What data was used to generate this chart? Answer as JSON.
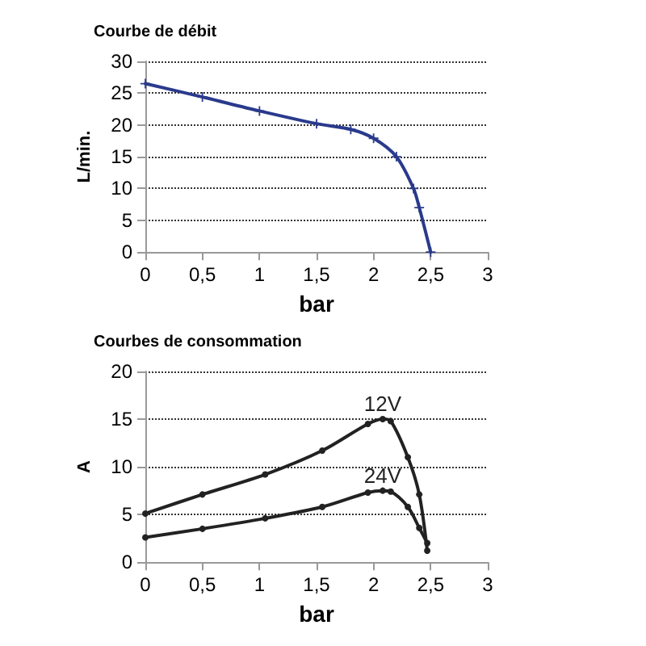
{
  "chart_data": [
    {
      "type": "line",
      "title": "Courbe de débit",
      "xlabel": "bar",
      "ylabel": "L/min.",
      "xlim": [
        0,
        3
      ],
      "xticks": [
        0,
        {
          "value": 0.5,
          "label": "0,5"
        },
        1,
        {
          "value": 1.5,
          "label": "1,5"
        },
        2,
        {
          "value": 2.5,
          "label": "2,5"
        },
        3
      ],
      "ylim": [
        0,
        30
      ],
      "yticks": [
        0,
        5,
        10,
        15,
        20,
        25,
        30
      ],
      "grid": "y",
      "marker": "cross",
      "line_style": "solid",
      "series": [
        {
          "color": "#2a3a8c",
          "x": [
            0,
            0.5,
            1,
            1.5,
            1.8,
            2,
            2.2,
            2.35,
            2.4,
            2.5
          ],
          "values": [
            26.5,
            24.4,
            22.2,
            20.2,
            19.3,
            17.9,
            15,
            10,
            7,
            0
          ]
        }
      ]
    },
    {
      "type": "line",
      "title": "Courbes de consommation",
      "xlabel": "bar",
      "ylabel": "A",
      "xlim": [
        0,
        3
      ],
      "xticks": [
        0,
        {
          "value": 0.5,
          "label": "0,5"
        },
        1,
        {
          "value": 1.5,
          "label": "1,5"
        },
        2,
        {
          "value": 2.5,
          "label": "2,5"
        },
        3
      ],
      "ylim": [
        0,
        20
      ],
      "yticks": [
        0,
        5,
        10,
        15,
        20
      ],
      "grid": "y",
      "marker": "circle",
      "line_style": "solid",
      "series": [
        {
          "name": "12V",
          "color": "#222222",
          "x": [
            0,
            0.5,
            1.05,
            1.55,
            1.95,
            2.08,
            2.15,
            2.3,
            2.4,
            2.47
          ],
          "values": [
            5.1,
            7.1,
            9.2,
            11.7,
            14.5,
            15,
            14.8,
            11,
            7.1,
            1.2
          ]
        },
        {
          "name": "24V",
          "color": "#222222",
          "x": [
            0,
            0.5,
            1.05,
            1.55,
            1.95,
            2.08,
            2.15,
            2.3,
            2.4,
            2.47
          ],
          "values": [
            2.6,
            3.5,
            4.6,
            5.8,
            7.3,
            7.5,
            7.4,
            5.8,
            3.6,
            2
          ]
        }
      ]
    }
  ]
}
